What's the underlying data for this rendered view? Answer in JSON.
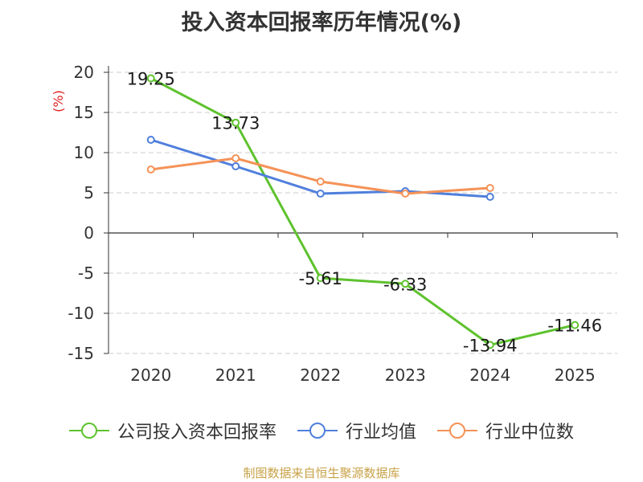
{
  "chart_data": {
    "type": "line",
    "title": "投入资本回报率历年情况(%)",
    "ylabel": "(%)",
    "xlabel": "",
    "categories": [
      "2020",
      "2021",
      "2022",
      "2023",
      "2024",
      "2025"
    ],
    "ylim": [
      -15,
      20
    ],
    "yticks": [
      "20",
      "15",
      "10",
      "5",
      "0",
      "-5",
      "-10",
      "-15"
    ],
    "grid": true,
    "legend_position": "bottom",
    "series": [
      {
        "name": "公司投入资本回报率",
        "color": "#5ec22e",
        "values": [
          19.25,
          13.73,
          -5.61,
          -6.33,
          -13.94,
          -11.46
        ],
        "labels": [
          "19.25",
          "13.73",
          "-5.61",
          "-6.33",
          "-13.94",
          "-11.46"
        ]
      },
      {
        "name": "行业均值",
        "color": "#4f7fdc",
        "values": [
          11.6,
          8.3,
          4.9,
          5.2,
          4.5,
          null
        ]
      },
      {
        "name": "行业中位数",
        "color": "#f59257",
        "values": [
          7.9,
          9.3,
          6.4,
          4.9,
          5.6,
          null
        ]
      }
    ]
  },
  "source": "制图数据来自恒生聚源数据库"
}
